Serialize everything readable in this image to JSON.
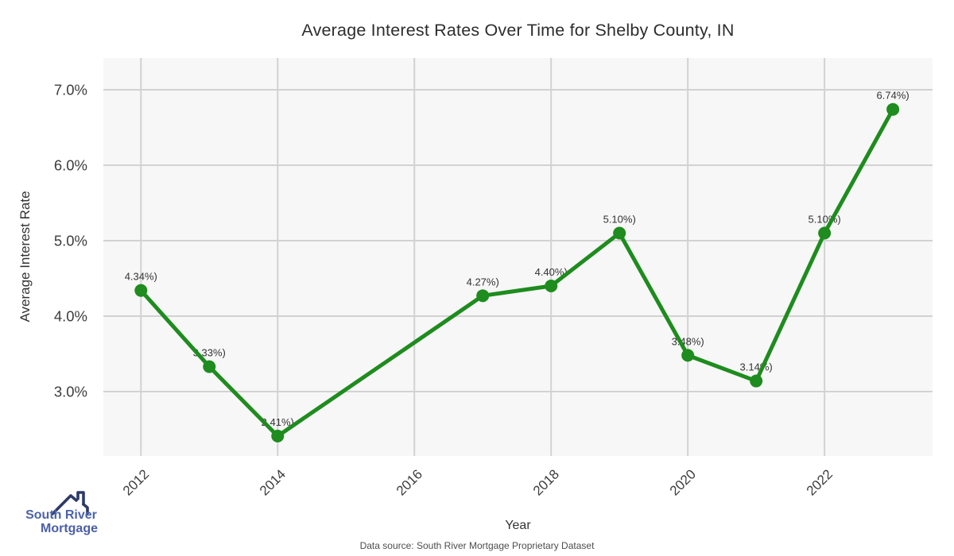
{
  "chart_data": {
    "type": "line",
    "title": "Average Interest Rates Over Time for Shelby County, IN",
    "xlabel": "Year",
    "ylabel": "Average Interest Rate",
    "x": [
      2012,
      2013,
      2014,
      2017,
      2018,
      2019,
      2020,
      2021,
      2022,
      2023
    ],
    "values": [
      4.34,
      3.33,
      2.41,
      4.27,
      4.4,
      5.1,
      3.48,
      3.14,
      5.1,
      6.74
    ],
    "point_labels": [
      "4.34%)",
      "3.33%)",
      "2.41%)",
      "4.27%)",
      "4.40%)",
      "5.10%)",
      "3.48%)",
      "3.14%)",
      "5.10%)",
      "6.74%)"
    ],
    "x_ticks": [
      2012,
      2014,
      2016,
      2018,
      2020,
      2022
    ],
    "x_tick_labels": [
      "2012",
      "2014",
      "2016",
      "2018",
      "2020",
      "2022"
    ],
    "y_ticks": [
      3,
      4,
      5,
      6,
      7
    ],
    "y_tick_labels": [
      "3.0%",
      "4.0%",
      "5.0%",
      "6.0%",
      "7.0%"
    ],
    "xlim": [
      2011.45,
      2023.58
    ],
    "ylim": [
      2.147,
      7.421
    ],
    "grid": true,
    "legend": "none",
    "line_color": "#1e8c1e",
    "marker_color": "#1e8c1e",
    "plot_bg_color": "#f7f7f7",
    "grid_color": "#d2d2d2",
    "tick_color": "#3d3d3d",
    "annotation_color": "#333333"
  },
  "footer": {
    "source_text": "Data source: South River Mortgage Proprietary Dataset"
  },
  "logo": {
    "line1": "South River",
    "line2": "Mortgage",
    "text_color": "#4c63ab",
    "roof_color": "#2d3a66"
  }
}
